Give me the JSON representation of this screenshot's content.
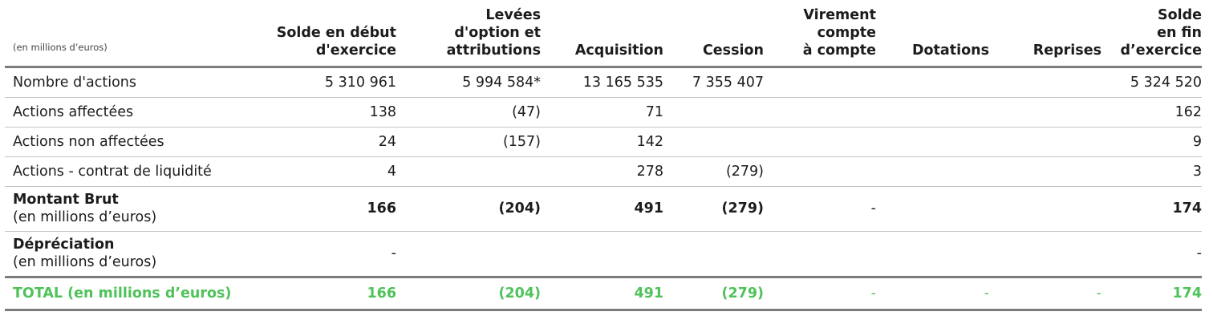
{
  "table": {
    "unit_note": "(en millions d’euros)",
    "columns": [
      [
        "Solde en début",
        "d'exercice"
      ],
      [
        "Levées",
        "d'option et",
        "attributions"
      ],
      [
        "Acquisition"
      ],
      [
        "Cession"
      ],
      [
        "Virement",
        "compte",
        "à compte"
      ],
      [
        "Dotations"
      ],
      [
        "Reprises"
      ],
      [
        "Solde",
        "en fin",
        "d’exercice"
      ]
    ],
    "rows": [
      {
        "label": "Nombre d'actions",
        "values": [
          "5 310 961",
          "5 994 584*",
          "13 165 535",
          "7 355 407",
          "",
          "",
          "",
          "5 324 520"
        ]
      },
      {
        "label": "Actions affectées",
        "values": [
          "138",
          "(47)",
          "71",
          "",
          "",
          "",
          "",
          "162"
        ]
      },
      {
        "label": "Actions non affectées",
        "values": [
          "24",
          "(157)",
          "142",
          "",
          "",
          "",
          "",
          "9"
        ]
      },
      {
        "label": "Actions - contrat de liquidité",
        "values": [
          "4",
          "",
          "278",
          "(279)",
          "",
          "",
          "",
          "3"
        ]
      },
      {
        "label_bold": "Montant Brut",
        "label_sub": "(en millions d’euros)",
        "values": [
          "166",
          "(204)",
          "491",
          "(279)",
          "-",
          "",
          "",
          "174"
        ]
      },
      {
        "label_bold": "Dépréciation",
        "label_sub": "(en millions d’euros)",
        "values": [
          "-",
          "",
          "",
          "",
          "",
          "",
          "",
          "-"
        ]
      }
    ],
    "total": {
      "label": "TOTAL (en millions d’euros)",
      "values": [
        "166",
        "(204)",
        "491",
        "(279)",
        "-",
        "-",
        "-",
        "174"
      ]
    }
  },
  "colors": {
    "total_green": "#4fc25a",
    "rule_gray": "#7c7c7c",
    "row_line": "#c4c4c4"
  }
}
